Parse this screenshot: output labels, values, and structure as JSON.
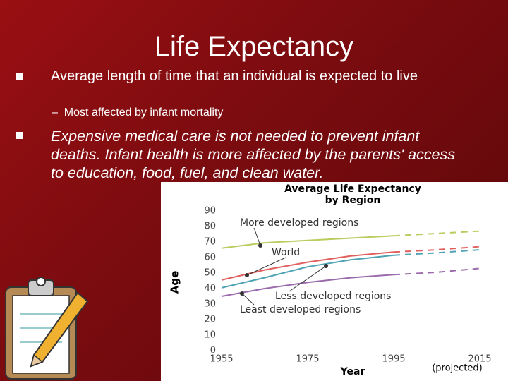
{
  "slide": {
    "title": "Life Expectancy",
    "bullets": [
      {
        "text": "Average length of time that an individual is expected to live",
        "sub": [
          "Most affected by infant mortality"
        ]
      },
      {
        "text": "Expensive medical care is not needed to prevent infant deaths. Infant health is more affected by the parents' access to education, food, fuel, and clean water."
      }
    ]
  },
  "chart_data": {
    "type": "line",
    "title": "Average Life Expectancy",
    "subtitle": "by Region",
    "x_label": "Year",
    "y_label": "Age",
    "annotation": "(projected)",
    "x": [
      1955,
      1965,
      1975,
      1985,
      1995,
      2005,
      2015
    ],
    "xlim": [
      1955,
      2015
    ],
    "xticks": [
      1955,
      1975,
      1995,
      2015
    ],
    "ylim": [
      0,
      90
    ],
    "yticks": [
      0,
      10,
      20,
      30,
      40,
      50,
      60,
      70,
      80,
      90
    ],
    "projected_from": 1995,
    "series": [
      {
        "name": "More developed regions",
        "color": "#b9cc5e",
        "values": [
          66,
          69.5,
          71,
          72.5,
          74,
          75.5,
          77
        ]
      },
      {
        "name": "World",
        "color": "#e0605e",
        "values": [
          45.5,
          52,
          57,
          61,
          63.5,
          65,
          67
        ]
      },
      {
        "name": "Less developed regions",
        "color": "#4fa3b3",
        "values": [
          40.5,
          47,
          54,
          58.5,
          61.5,
          63,
          65
        ]
      },
      {
        "name": "Least developed regions",
        "color": "#9b6aab",
        "values": [
          35,
          40,
          44,
          47,
          49,
          50.5,
          53
        ]
      }
    ]
  }
}
